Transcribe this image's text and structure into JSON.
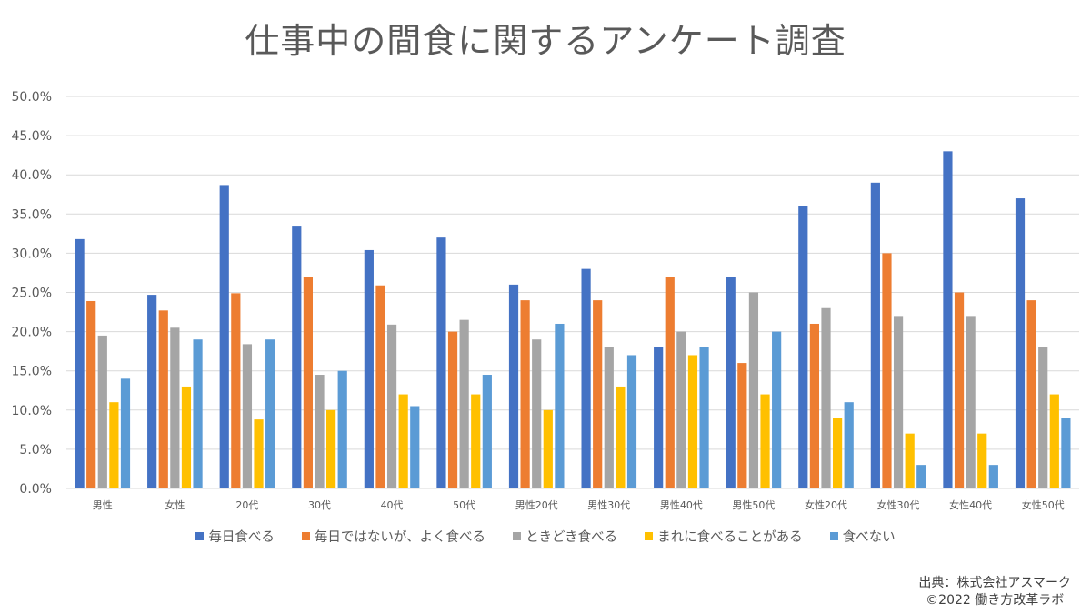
{
  "chart_data": {
    "type": "bar",
    "title": "仕事中の間食に関するアンケート調査",
    "xlabel": "",
    "ylabel": "",
    "ylim": [
      0,
      50
    ],
    "ytick_step": 5,
    "ytick_labels": [
      "0.0%",
      "5.0%",
      "10.0%",
      "15.0%",
      "20.0%",
      "25.0%",
      "30.0%",
      "35.0%",
      "40.0%",
      "45.0%",
      "50.0%"
    ],
    "grid": true,
    "legend_position": "bottom",
    "categories": [
      "男性",
      "女性",
      "20代",
      "30代",
      "40代",
      "50代",
      "男性20代",
      "男性30代",
      "男性40代",
      "男性50代",
      "女性20代",
      "女性30代",
      "女性40代",
      "女性50代"
    ],
    "series": [
      {
        "name": "毎日食べる",
        "color": "#4472C4",
        "values": [
          31.8,
          24.7,
          38.7,
          33.4,
          30.4,
          32.0,
          26,
          28,
          18,
          27,
          36,
          39,
          43,
          37
        ]
      },
      {
        "name": "毎日ではないが、よく食べる",
        "color": "#ED7D31",
        "values": [
          23.9,
          22.7,
          24.9,
          27.0,
          25.9,
          20.0,
          24,
          24,
          27,
          16,
          21,
          30,
          25,
          24
        ]
      },
      {
        "name": "ときどき食べる",
        "color": "#A5A5A5",
        "values": [
          19.5,
          20.5,
          18.4,
          14.5,
          20.9,
          21.5,
          19,
          18,
          20,
          25,
          23,
          22,
          22,
          18
        ]
      },
      {
        "name": "まれに食べることがある",
        "color": "#FFC000",
        "values": [
          11.0,
          13.0,
          8.8,
          10.0,
          12.0,
          12.0,
          10,
          13,
          17,
          12,
          9,
          7,
          7,
          12
        ]
      },
      {
        "name": "食べない",
        "color": "#5B9BD5",
        "values": [
          14.0,
          19.0,
          19.0,
          15.0,
          10.5,
          14.5,
          21,
          17,
          18,
          20,
          11,
          3,
          3,
          9
        ]
      }
    ]
  },
  "source": {
    "line1": "出典：株式会社アスマーク",
    "line2": "©2022 働き方改革ラボ"
  }
}
